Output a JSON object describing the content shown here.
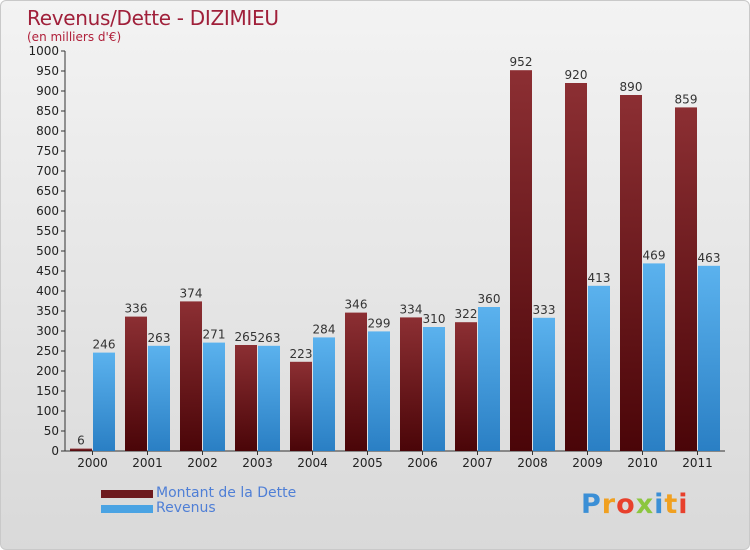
{
  "header": {
    "title": "Revenus/Dette - DIZIMIEU",
    "subtitle": "(en milliers d'€)"
  },
  "legend": {
    "items": [
      {
        "label": "Montant de la Dette",
        "color": "#6e1a1e"
      },
      {
        "label": "Revenus",
        "color": "#4aa3e3"
      }
    ]
  },
  "logo": {
    "text": "Proxiti",
    "letters": [
      {
        "char": "P",
        "color": "#3b8fd6"
      },
      {
        "char": "r",
        "color": "#f0a020"
      },
      {
        "char": "o",
        "color": "#e8402c"
      },
      {
        "char": "x",
        "color": "#8cc63f"
      },
      {
        "char": "i",
        "color": "#3b8fd6"
      },
      {
        "char": "t",
        "color": "#f0a020"
      },
      {
        "char": "i",
        "color": "#e8402c"
      }
    ]
  },
  "chart_data": {
    "type": "bar",
    "title": "Revenus/Dette - DIZIMIEU",
    "subtitle": "(en milliers d'€)",
    "categories": [
      "2000",
      "2001",
      "2002",
      "2003",
      "2004",
      "2005",
      "2006",
      "2007",
      "2008",
      "2009",
      "2010",
      "2011"
    ],
    "series": [
      {
        "name": "Montant de la Dette",
        "color": "#6e1a1e",
        "values": [
          6,
          336,
          374,
          265,
          223,
          346,
          334,
          322,
          952,
          920,
          890,
          859
        ]
      },
      {
        "name": "Revenus",
        "color": "#4aa3e3",
        "values": [
          246,
          263,
          271,
          263,
          284,
          299,
          310,
          360,
          333,
          413,
          469,
          463
        ]
      }
    ],
    "ylim": [
      0,
      1000
    ],
    "yticks": [
      0,
      50,
      100,
      150,
      200,
      250,
      300,
      350,
      400,
      450,
      500,
      550,
      600,
      650,
      700,
      750,
      800,
      850,
      900,
      950,
      1000
    ],
    "grid": false,
    "legend_position": "bottom-left"
  }
}
